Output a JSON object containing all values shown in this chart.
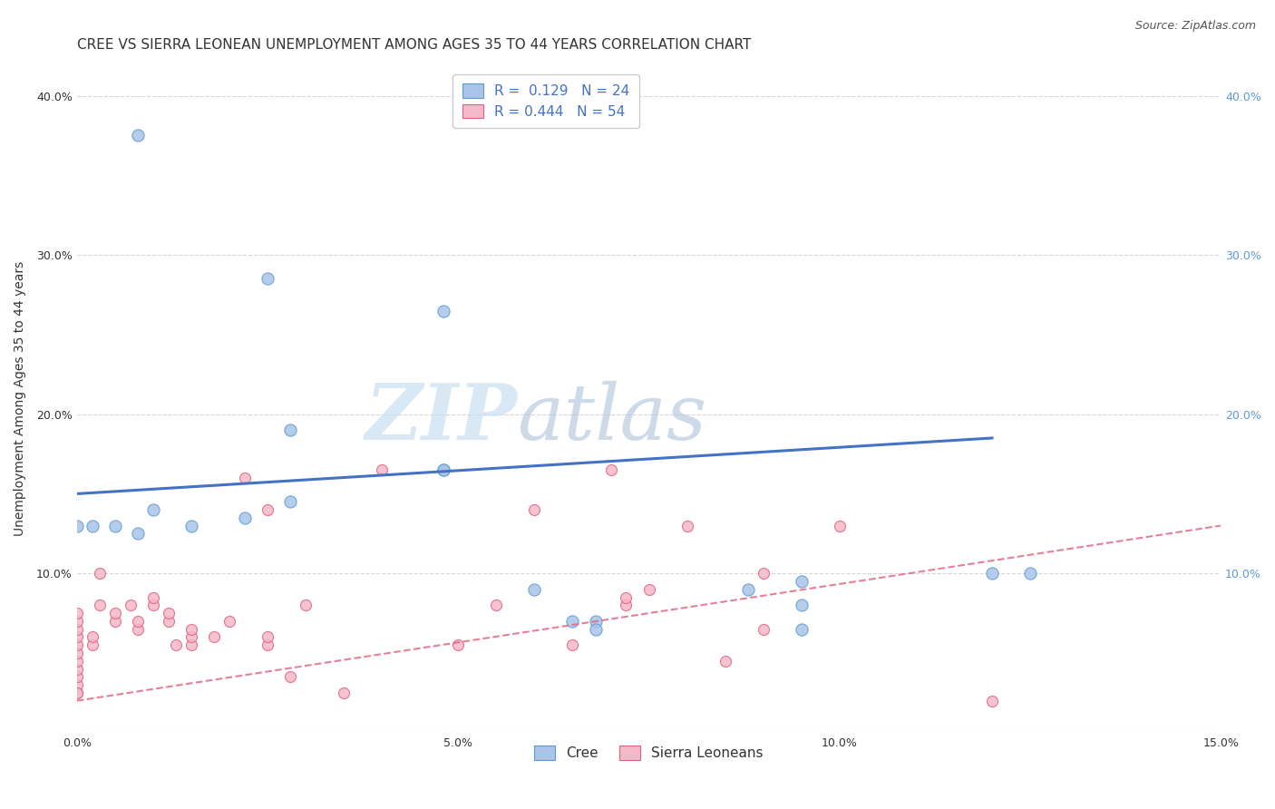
{
  "title": "CREE VS SIERRA LEONEAN UNEMPLOYMENT AMONG AGES 35 TO 44 YEARS CORRELATION CHART",
  "source": "Source: ZipAtlas.com",
  "ylabel": "Unemployment Among Ages 35 to 44 years",
  "xlim": [
    0.0,
    0.15
  ],
  "ylim": [
    0.0,
    0.42
  ],
  "x_ticks": [
    0.0,
    0.05,
    0.1,
    0.15
  ],
  "x_tick_labels": [
    "0.0%",
    "5.0%",
    "10.0%",
    "15.0%"
  ],
  "y_ticks": [
    0.0,
    0.1,
    0.2,
    0.3,
    0.4
  ],
  "y_tick_labels_left": [
    "",
    "10.0%",
    "20.0%",
    "30.0%",
    "40.0%"
  ],
  "y_tick_labels_right": [
    "",
    "10.0%",
    "20.0%",
    "30.0%",
    "40.0%"
  ],
  "cree_color": "#5b9bd5",
  "cree_fill": "#aac4e8",
  "sl_color": "#e06080",
  "sl_fill": "#f4b8c8",
  "cree_line_color": "#4472c4",
  "sl_line_color": "#e06080",
  "watermark_zip": "ZIP",
  "watermark_atlas": "atlas",
  "background_color": "#ffffff",
  "grid_color": "#cccccc",
  "cree_points": [
    [
      0.008,
      0.375
    ],
    [
      0.025,
      0.285
    ],
    [
      0.048,
      0.265
    ],
    [
      0.0,
      0.13
    ],
    [
      0.002,
      0.13
    ],
    [
      0.005,
      0.13
    ],
    [
      0.008,
      0.125
    ],
    [
      0.01,
      0.14
    ],
    [
      0.015,
      0.13
    ],
    [
      0.022,
      0.135
    ],
    [
      0.028,
      0.145
    ],
    [
      0.028,
      0.19
    ],
    [
      0.048,
      0.165
    ],
    [
      0.048,
      0.165
    ],
    [
      0.06,
      0.09
    ],
    [
      0.065,
      0.07
    ],
    [
      0.068,
      0.07
    ],
    [
      0.068,
      0.065
    ],
    [
      0.088,
      0.09
    ],
    [
      0.095,
      0.095
    ],
    [
      0.095,
      0.08
    ],
    [
      0.095,
      0.065
    ],
    [
      0.12,
      0.1
    ],
    [
      0.125,
      0.1
    ]
  ],
  "sl_points": [
    [
      0.0,
      0.025
    ],
    [
      0.0,
      0.03
    ],
    [
      0.0,
      0.035
    ],
    [
      0.0,
      0.04
    ],
    [
      0.0,
      0.045
    ],
    [
      0.0,
      0.05
    ],
    [
      0.0,
      0.055
    ],
    [
      0.0,
      0.06
    ],
    [
      0.0,
      0.065
    ],
    [
      0.0,
      0.07
    ],
    [
      0.0,
      0.075
    ],
    [
      0.0,
      0.025
    ],
    [
      0.002,
      0.055
    ],
    [
      0.002,
      0.06
    ],
    [
      0.003,
      0.08
    ],
    [
      0.003,
      0.1
    ],
    [
      0.005,
      0.07
    ],
    [
      0.005,
      0.075
    ],
    [
      0.007,
      0.08
    ],
    [
      0.008,
      0.065
    ],
    [
      0.008,
      0.07
    ],
    [
      0.01,
      0.08
    ],
    [
      0.01,
      0.085
    ],
    [
      0.012,
      0.07
    ],
    [
      0.012,
      0.075
    ],
    [
      0.013,
      0.055
    ],
    [
      0.015,
      0.055
    ],
    [
      0.015,
      0.06
    ],
    [
      0.015,
      0.065
    ],
    [
      0.018,
      0.06
    ],
    [
      0.02,
      0.07
    ],
    [
      0.022,
      0.16
    ],
    [
      0.025,
      0.055
    ],
    [
      0.025,
      0.06
    ],
    [
      0.025,
      0.14
    ],
    [
      0.028,
      0.035
    ],
    [
      0.03,
      0.08
    ],
    [
      0.035,
      0.025
    ],
    [
      0.04,
      0.165
    ],
    [
      0.05,
      0.055
    ],
    [
      0.055,
      0.08
    ],
    [
      0.06,
      0.14
    ],
    [
      0.065,
      0.055
    ],
    [
      0.07,
      0.165
    ],
    [
      0.072,
      0.08
    ],
    [
      0.072,
      0.085
    ],
    [
      0.075,
      0.09
    ],
    [
      0.08,
      0.13
    ],
    [
      0.085,
      0.045
    ],
    [
      0.09,
      0.065
    ],
    [
      0.09,
      0.1
    ],
    [
      0.1,
      0.13
    ],
    [
      0.12,
      0.02
    ]
  ],
  "cree_line": [
    0.0,
    0.15,
    0.12,
    0.185
  ],
  "sl_line": [
    0.0,
    0.02,
    0.15,
    0.13
  ],
  "title_fontsize": 11,
  "axis_label_fontsize": 10,
  "tick_fontsize": 9,
  "legend_fontsize": 11
}
